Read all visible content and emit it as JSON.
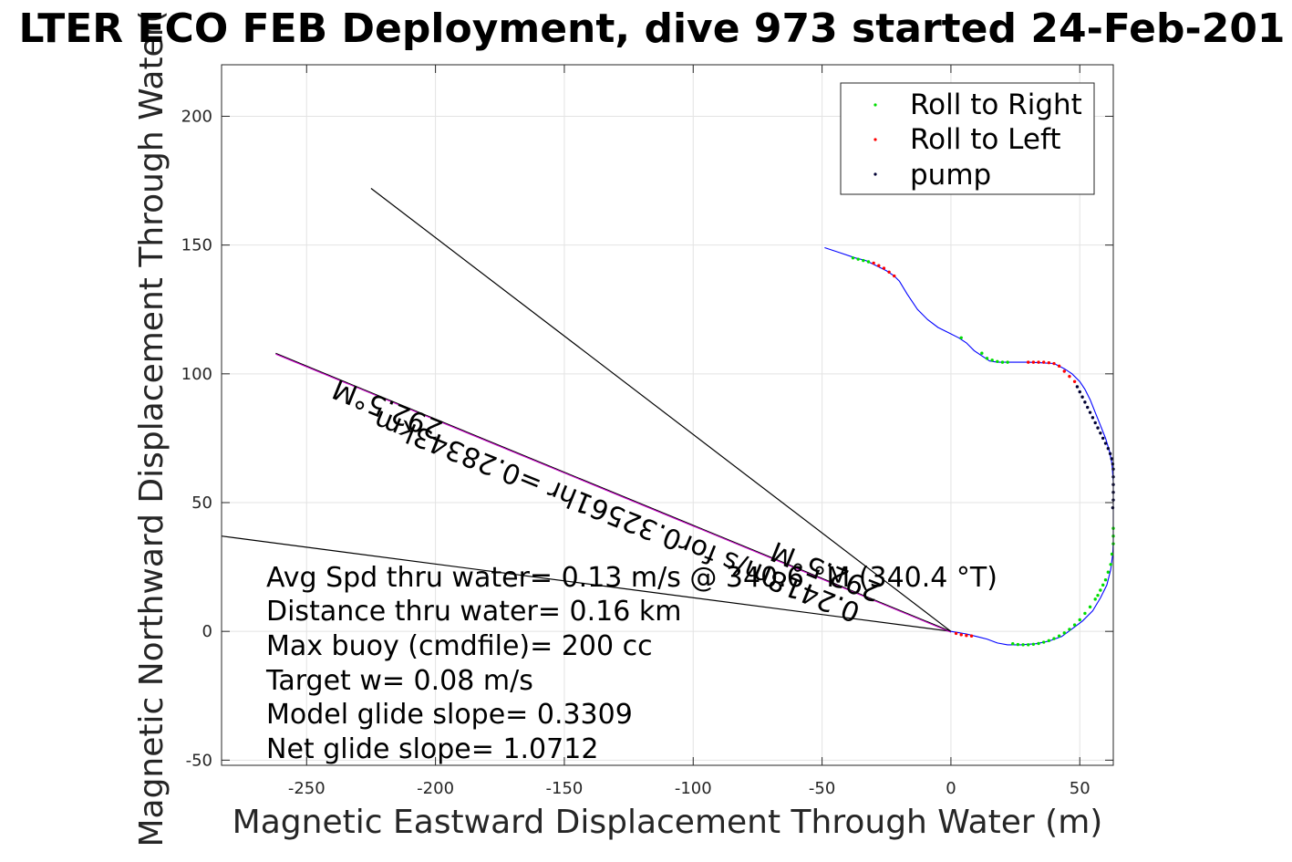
{
  "chart_data": {
    "type": "line",
    "title": "LTER ECO FEB Deployment, dive 973 started 24-Feb-201",
    "xlabel": "Magnetic Eastward Displacement Through Water (m)",
    "ylabel": "Magnetic Northward Displacement Through Water(",
    "xlim": [
      -283,
      63
    ],
    "ylim": [
      -52,
      220
    ],
    "xticks": [
      -250,
      -200,
      -150,
      -100,
      -50,
      0,
      50
    ],
    "yticks": [
      -50,
      0,
      50,
      100,
      150,
      200
    ],
    "grid": true,
    "legend_position": "top-right",
    "legend": [
      "Roll to Right",
      "Roll to Left",
      "pump"
    ],
    "colors": {
      "track": "#0000ff",
      "roll_right": "#00dd00",
      "roll_left": "#ff0000",
      "pump": "#000033",
      "heading_line": "#cc00cc",
      "reference_lines": "#000000"
    },
    "track": {
      "x": [
        -49,
        -43,
        -37,
        -33,
        -29,
        -25,
        -22,
        -20,
        -17,
        -13,
        -9,
        -5,
        -1,
        3,
        6,
        9,
        12,
        15,
        18,
        21,
        25,
        30,
        35,
        40,
        44,
        47,
        50,
        52,
        54,
        56,
        58,
        60,
        61.5,
        62.5,
        63,
        63,
        63,
        63,
        62.8,
        62,
        60.5,
        58,
        55,
        51,
        47,
        43,
        38,
        33,
        27,
        22,
        18,
        14,
        10,
        6,
        3,
        0
      ],
      "y": [
        149,
        147,
        145,
        144,
        142,
        140,
        138,
        136,
        131,
        125,
        121,
        118,
        116,
        114,
        112,
        109,
        107,
        105,
        104.5,
        104.5,
        104.5,
        104.5,
        104.3,
        104,
        102,
        100,
        97,
        94,
        90,
        85,
        80,
        75,
        70,
        65,
        58,
        50,
        42,
        35,
        30,
        24,
        18,
        13,
        8,
        4,
        1,
        -2,
        -3.8,
        -4.8,
        -5.2,
        -5.2,
        -4.5,
        -3,
        -2,
        -1,
        -0.5,
        0
      ]
    },
    "roll_right_points": {
      "x": [
        -38,
        -36,
        -34,
        -32,
        4,
        12,
        14,
        16,
        18,
        20,
        22,
        24,
        26,
        28,
        30,
        32,
        34,
        36,
        38,
        40,
        42,
        44,
        46,
        48,
        50,
        52,
        54,
        56,
        57,
        58,
        59,
        60,
        61,
        62,
        62.5,
        63,
        63,
        63
      ],
      "y": [
        145,
        144.5,
        144,
        143.5,
        114,
        108,
        106,
        105.3,
        104.8,
        104.5,
        104.5,
        -4.8,
        -5.1,
        -5.2,
        -5.2,
        -5,
        -4.7,
        -4.2,
        -3.6,
        -2.8,
        -1.8,
        -0.6,
        0.8,
        2.5,
        4.5,
        7,
        9.5,
        12.5,
        14,
        16,
        18,
        20,
        23,
        26,
        30,
        34,
        37,
        40
      ]
    },
    "roll_left_points": {
      "x": [
        -30,
        -28,
        -26,
        -24,
        -22,
        30,
        32,
        34,
        36,
        38,
        40,
        42,
        44,
        46,
        48,
        2,
        4,
        6,
        8
      ],
      "y": [
        143,
        142,
        141,
        139.5,
        138,
        104.5,
        104.5,
        104.5,
        104.5,
        104.3,
        104,
        103,
        101,
        99,
        97,
        -0.8,
        -1.3,
        -1.6,
        -1.8
      ]
    },
    "pump_points": {
      "x": [
        49,
        50,
        51,
        52,
        53,
        54,
        55,
        56,
        57,
        58,
        59,
        60,
        61,
        61.8,
        62.4,
        62.8,
        63,
        63,
        63,
        63,
        63,
        62.8
      ],
      "y": [
        95,
        93,
        91,
        89,
        87,
        85,
        83,
        81,
        79,
        77,
        75,
        73,
        71,
        69,
        67,
        65,
        63,
        60,
        57,
        54,
        51,
        48
      ]
    },
    "reference_lines": [
      {
        "x": [
          -225,
          0
        ],
        "y": [
          172,
          0
        ]
      },
      {
        "x": [
          -283,
          0
        ],
        "y": [
          37,
          0
        ]
      }
    ],
    "heading_line": {
      "x": [
        -262,
        0
      ],
      "y": [
        108,
        0
      ]
    },
    "heading_labels": [
      {
        "text": "292.5°M",
        "x": -238,
        "y": 98,
        "angle_deg": 22
      },
      {
        "text": "0.2418m/s for0.32561hr =0.28343km",
        "x": -222,
        "y": 86,
        "angle_deg": 22
      },
      {
        "text": "292.5°M",
        "x": -68,
        "y": 35,
        "angle_deg": 22
      }
    ],
    "annotations": [
      "Avg Spd thru water=  0.13 m/s @ 340.6 °M (340.4 °T)",
      "Distance thru water=  0.16 km",
      "Max buoy (cmdfile)= 200 cc",
      "Target w= 0.08 m/s",
      "Model glide slope= 0.3309",
      "Net glide slope= 1.0712"
    ]
  }
}
